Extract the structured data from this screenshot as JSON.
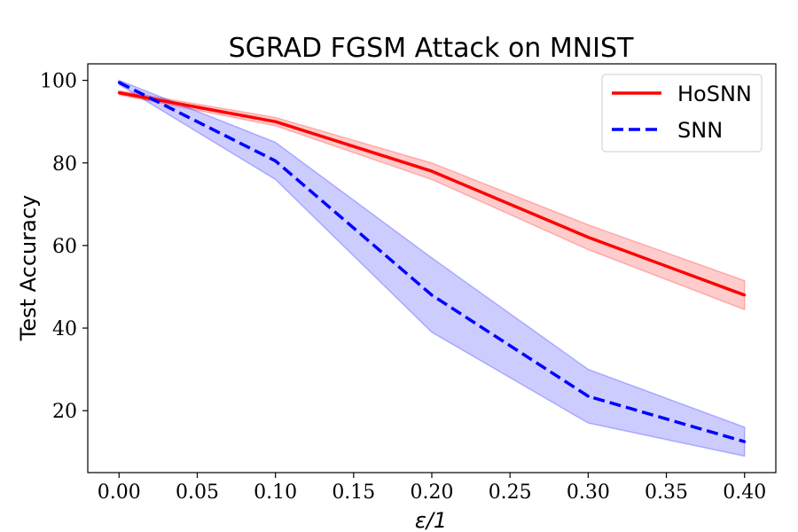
{
  "chart_data": {
    "type": "line",
    "title": "SGRAD FGSM Attack on MNIST",
    "xlabel": "ε/1",
    "ylabel": "Test Accuracy",
    "x": [
      0.0,
      0.1,
      0.2,
      0.3,
      0.4
    ],
    "xlim": [
      -0.02,
      0.42
    ],
    "ylim": [
      5,
      104
    ],
    "x_ticks": [
      0.0,
      0.05,
      0.1,
      0.15,
      0.2,
      0.25,
      0.3,
      0.35,
      0.4
    ],
    "x_tick_labels": [
      "0.00",
      "0.05",
      "0.10",
      "0.15",
      "0.20",
      "0.25",
      "0.30",
      "0.35",
      "0.40"
    ],
    "y_ticks": [
      20,
      40,
      60,
      80,
      100
    ],
    "y_tick_labels": [
      "20",
      "40",
      "60",
      "80",
      "100"
    ],
    "grid": false,
    "legend_position": "top-right",
    "series": [
      {
        "name": "HoSNN",
        "color": "#ff0000",
        "line_style": "solid",
        "values": [
          97,
          90,
          78,
          62,
          48
        ],
        "lower": [
          96.5,
          89,
          76,
          59,
          44.5
        ],
        "upper": [
          97.5,
          91,
          80,
          65,
          51.5
        ]
      },
      {
        "name": "SNN",
        "color": "#0000ff",
        "line_style": "dashed",
        "values": [
          99.5,
          80.5,
          48,
          23.5,
          12.5
        ],
        "lower": [
          99,
          76,
          39,
          17,
          9
        ],
        "upper": [
          100,
          85,
          57,
          30,
          16
        ]
      }
    ]
  }
}
